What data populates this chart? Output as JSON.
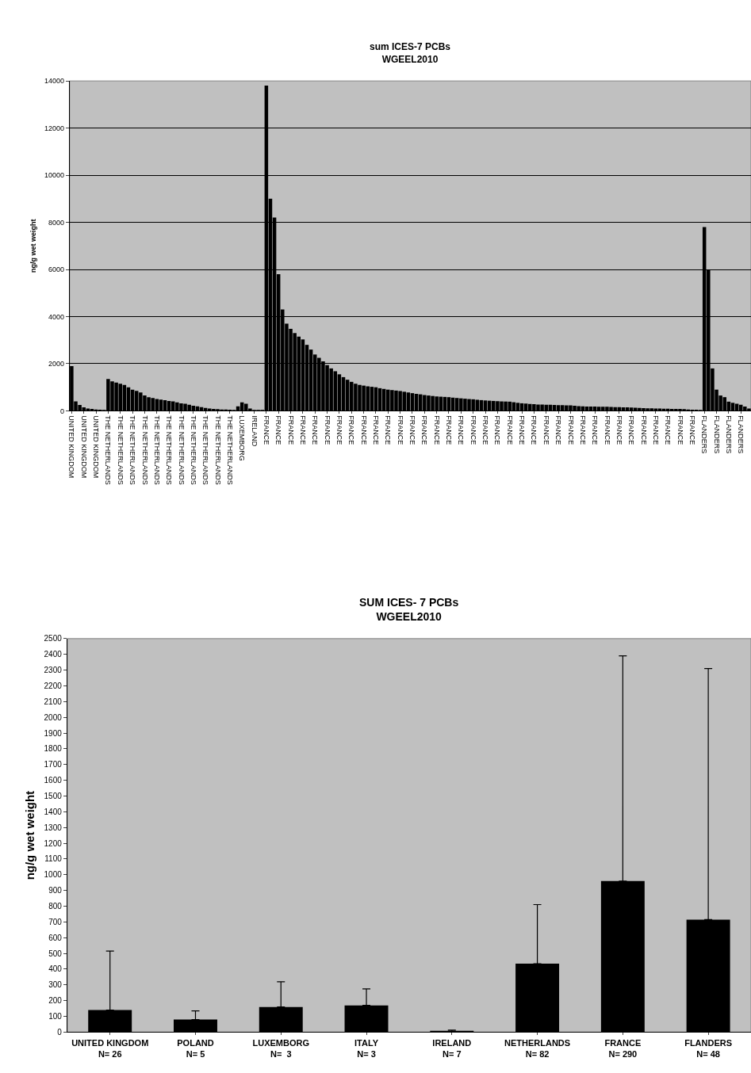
{
  "chart_data": [
    {
      "type": "bar",
      "title": "sum ICES-7 PCBs\nWGEEL2010",
      "ylabel": "ng/g wet weight",
      "categories": [
        "UNITED KINGDOM",
        null,
        null,
        "UNITED KINGDOM",
        null,
        null,
        "UNITED KINGDOM",
        null,
        null,
        "THE NETHERLANDS",
        null,
        null,
        "THE NETHERLANDS",
        null,
        null,
        "THE NETHERLANDS",
        null,
        null,
        "THE NETHERLANDS",
        null,
        null,
        "THE NETHERLANDS",
        null,
        null,
        "THE NETHERLANDS",
        null,
        null,
        "THE NETHERLANDS",
        null,
        null,
        "THE NETHERLANDS",
        null,
        null,
        "THE NETHERLANDS",
        null,
        null,
        "THE NETHERLANDS",
        null,
        null,
        "THE NETHERLANDS",
        null,
        null,
        "LUXEMBORG",
        null,
        null,
        "IRELAND",
        null,
        null,
        "FRANCE",
        null,
        null,
        "FRANCE",
        null,
        null,
        "FRANCE",
        null,
        null,
        "FRANCE",
        null,
        null,
        "FRANCE",
        null,
        null,
        "FRANCE",
        null,
        null,
        "FRANCE",
        null,
        null,
        "FRANCE",
        null,
        null,
        "FRANCE",
        null,
        null,
        "FRANCE",
        null,
        null,
        "FRANCE",
        null,
        null,
        "FRANCE",
        null,
        null,
        "FRANCE",
        null,
        null,
        "FRANCE",
        null,
        null,
        "FRANCE",
        null,
        null,
        "FRANCE",
        null,
        null,
        "FRANCE",
        null,
        null,
        "FRANCE",
        null,
        null,
        "FRANCE",
        null,
        null,
        "FRANCE",
        null,
        null,
        "FRANCE",
        null,
        null,
        "FRANCE",
        null,
        null,
        "FRANCE",
        null,
        null,
        "FRANCE",
        null,
        null,
        "FRANCE",
        null,
        null,
        "FRANCE",
        null,
        null,
        "FRANCE",
        null,
        null,
        "FRANCE",
        null,
        null,
        "FRANCE",
        null,
        null,
        "FRANCE",
        null,
        null,
        "FRANCE",
        null,
        null,
        "FRANCE",
        null,
        null,
        "FRANCE",
        null,
        null,
        "FRANCE",
        null,
        null,
        "FRANCE",
        null,
        null,
        "FRANCE",
        null,
        null,
        "FLANDERS",
        null,
        null,
        "FLANDERS",
        null,
        null,
        "FLANDERS",
        null,
        null,
        "FLANDERS",
        null,
        null
      ],
      "values": [
        1900,
        400,
        250,
        150,
        100,
        80,
        60,
        50,
        40,
        1350,
        1250,
        1200,
        1150,
        1100,
        1000,
        900,
        850,
        780,
        650,
        580,
        540,
        500,
        480,
        450,
        420,
        400,
        360,
        320,
        300,
        260,
        220,
        190,
        160,
        120,
        100,
        80,
        70,
        60,
        55,
        45,
        40,
        190,
        360,
        300,
        100,
        20,
        10,
        10,
        13800,
        9000,
        8200,
        5800,
        4300,
        3700,
        3480,
        3300,
        3150,
        3030,
        2800,
        2600,
        2390,
        2250,
        2100,
        1940,
        1800,
        1680,
        1550,
        1430,
        1320,
        1230,
        1150,
        1100,
        1070,
        1040,
        1020,
        1000,
        960,
        930,
        900,
        880,
        860,
        840,
        810,
        780,
        750,
        720,
        700,
        670,
        650,
        630,
        610,
        600,
        590,
        580,
        560,
        545,
        530,
        515,
        500,
        490,
        470,
        455,
        440,
        430,
        420,
        410,
        400,
        395,
        390,
        365,
        340,
        320,
        305,
        290,
        280,
        270,
        265,
        260,
        255,
        250,
        245,
        240,
        235,
        230,
        215,
        200,
        190,
        185,
        182,
        180,
        175,
        172,
        170,
        165,
        160,
        155,
        150,
        145,
        140,
        130,
        120,
        115,
        110,
        105,
        100,
        95,
        92,
        90,
        85,
        82,
        80,
        70,
        60,
        50,
        45,
        40,
        7800,
        6000,
        1800,
        900,
        650,
        580,
        390,
        340,
        300,
        260,
        180,
        100
      ],
      "color": "#000000",
      "ylim": [
        0,
        14000
      ],
      "yticks": [
        0,
        2000,
        4000,
        6000,
        8000,
        10000,
        12000,
        14000
      ],
      "grid": "y"
    },
    {
      "type": "bar",
      "title": "SUM ICES- 7 PCBs\nWGEEL2010",
      "ylabel": "ng/g wet weight",
      "categories": [
        "UNITED KINGDOM\nN= 26",
        "POLAND\nN= 5",
        "LUXEMBORG\nN=  3",
        "ITALY\nN= 3",
        "IRELAND\nN= 7",
        "NETHERLANDS\nN= 82",
        "FRANCE\nN= 290",
        "FLANDERS\nN= 48"
      ],
      "values": [
        140,
        80,
        160,
        170,
        5,
        435,
        960,
        715
      ],
      "errors": [
        [
          140,
          515
        ],
        [
          80,
          135
        ],
        [
          160,
          320
        ],
        [
          170,
          275
        ],
        [
          5,
          13
        ],
        [
          435,
          810
        ],
        [
          960,
          2390
        ],
        [
          715,
          2310
        ]
      ],
      "color": "#000000",
      "ylim": [
        0,
        2500
      ],
      "yticks": [
        0,
        100,
        200,
        300,
        400,
        500,
        600,
        700,
        800,
        900,
        1000,
        1100,
        1200,
        1300,
        1400,
        1500,
        1600,
        1700,
        1800,
        1900,
        2000,
        2100,
        2200,
        2300,
        2400,
        2500
      ],
      "grid": false
    }
  ]
}
